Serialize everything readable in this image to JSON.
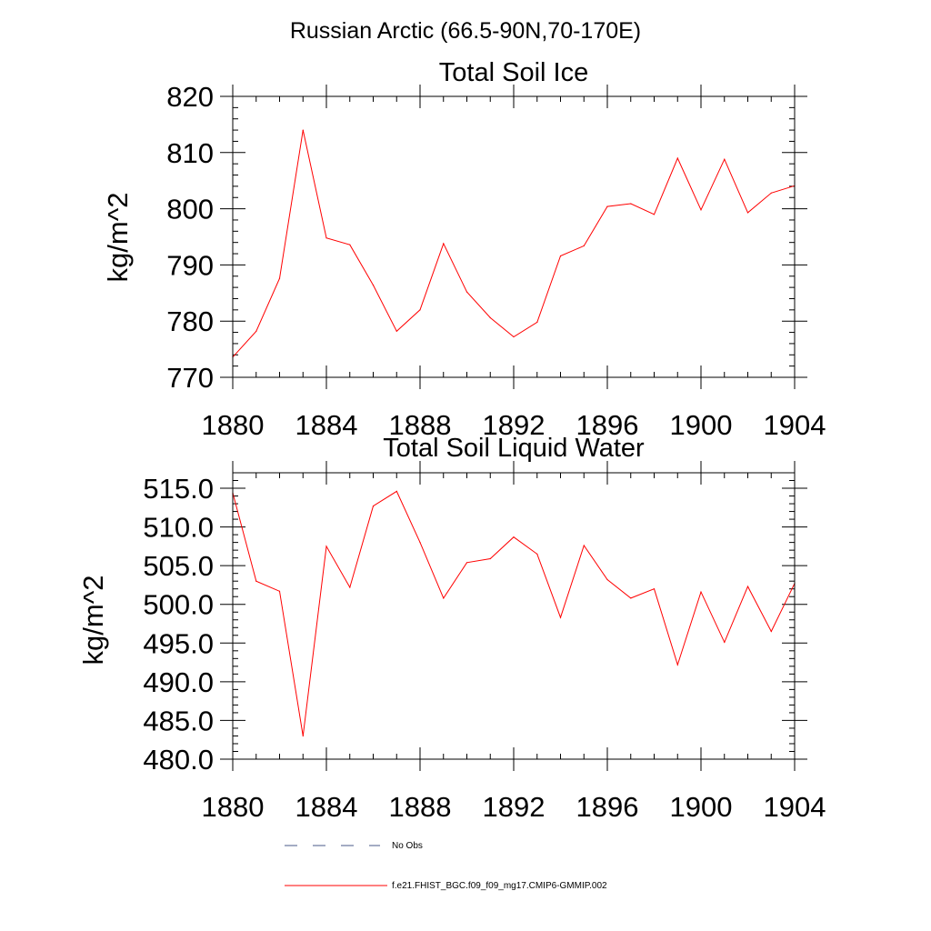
{
  "figure": {
    "title": "Russian Arctic (66.5-90N,70-170E)"
  },
  "chart_data": [
    {
      "type": "line",
      "title": "Total Soil Ice",
      "xlabel": "",
      "ylabel": "kg/m^2",
      "xlim": [
        1880,
        1904
      ],
      "ylim": [
        770,
        820
      ],
      "xticks": [
        1880,
        1884,
        1888,
        1892,
        1896,
        1900,
        1904
      ],
      "xtick_labels": [
        "1880",
        "1884",
        "1888",
        "1892",
        "1896",
        "1900",
        "1904"
      ],
      "yticks": [
        770,
        780,
        790,
        800,
        810,
        820
      ],
      "ytick_labels": [
        "770",
        "780",
        "790",
        "800",
        "810",
        "820"
      ],
      "grid": false,
      "series": [
        {
          "name": "f.e21.FHIST_BGC.f09_f09_mg17.CMIP6-GMMIP.002",
          "color": "#ff0000",
          "x": [
            1880,
            1881,
            1882,
            1883,
            1884,
            1885,
            1886,
            1887,
            1888,
            1889,
            1890,
            1891,
            1892,
            1893,
            1894,
            1895,
            1896,
            1897,
            1898,
            1899,
            1900,
            1901,
            1902,
            1903,
            1904
          ],
          "values": [
            773.6,
            778.2,
            787.6,
            814.0,
            794.8,
            793.6,
            786.4,
            778.2,
            782.0,
            793.8,
            785.2,
            780.6,
            777.2,
            779.8,
            791.6,
            793.4,
            800.4,
            800.9,
            799.0,
            809.0,
            799.8,
            808.8,
            799.3,
            802.8,
            804.1
          ]
        }
      ]
    },
    {
      "type": "line",
      "title": "Total Soil Liquid Water",
      "xlabel": "",
      "ylabel": "kg/m^2",
      "xlim": [
        1880,
        1904
      ],
      "ylim": [
        480,
        517
      ],
      "xticks": [
        1880,
        1884,
        1888,
        1892,
        1896,
        1900,
        1904
      ],
      "xtick_labels": [
        "1880",
        "1884",
        "1888",
        "1892",
        "1896",
        "1900",
        "1904"
      ],
      "yticks": [
        480,
        485,
        490,
        495,
        500,
        505,
        510,
        515
      ],
      "ytick_labels": [
        "480.0",
        "485.0",
        "490.0",
        "495.0",
        "500.0",
        "505.0",
        "510.0",
        "515.0"
      ],
      "grid": false,
      "series": [
        {
          "name": "f.e21.FHIST_BGC.f09_f09_mg17.CMIP6-GMMIP.002",
          "color": "#ff0000",
          "x": [
            1880,
            1881,
            1882,
            1883,
            1884,
            1885,
            1886,
            1887,
            1888,
            1889,
            1890,
            1891,
            1892,
            1893,
            1894,
            1895,
            1896,
            1897,
            1898,
            1899,
            1900,
            1901,
            1902,
            1903,
            1904
          ],
          "values": [
            514.4,
            503.0,
            501.7,
            483.0,
            507.5,
            502.2,
            512.7,
            514.6,
            508.0,
            500.8,
            505.4,
            505.9,
            508.7,
            506.5,
            498.3,
            507.6,
            503.2,
            500.8,
            502.0,
            492.2,
            501.6,
            495.1,
            502.3,
            496.5,
            502.7
          ]
        }
      ]
    }
  ],
  "legend": {
    "placement": "bottom",
    "items": [
      {
        "label": "No Obs",
        "style": "dashed",
        "color": "#4a5a8a"
      },
      {
        "label": "f.e21.FHIST_BGC.f09_f09_mg17.CMIP6-GMMIP.002",
        "style": "solid",
        "color": "#ff0000"
      }
    ]
  }
}
